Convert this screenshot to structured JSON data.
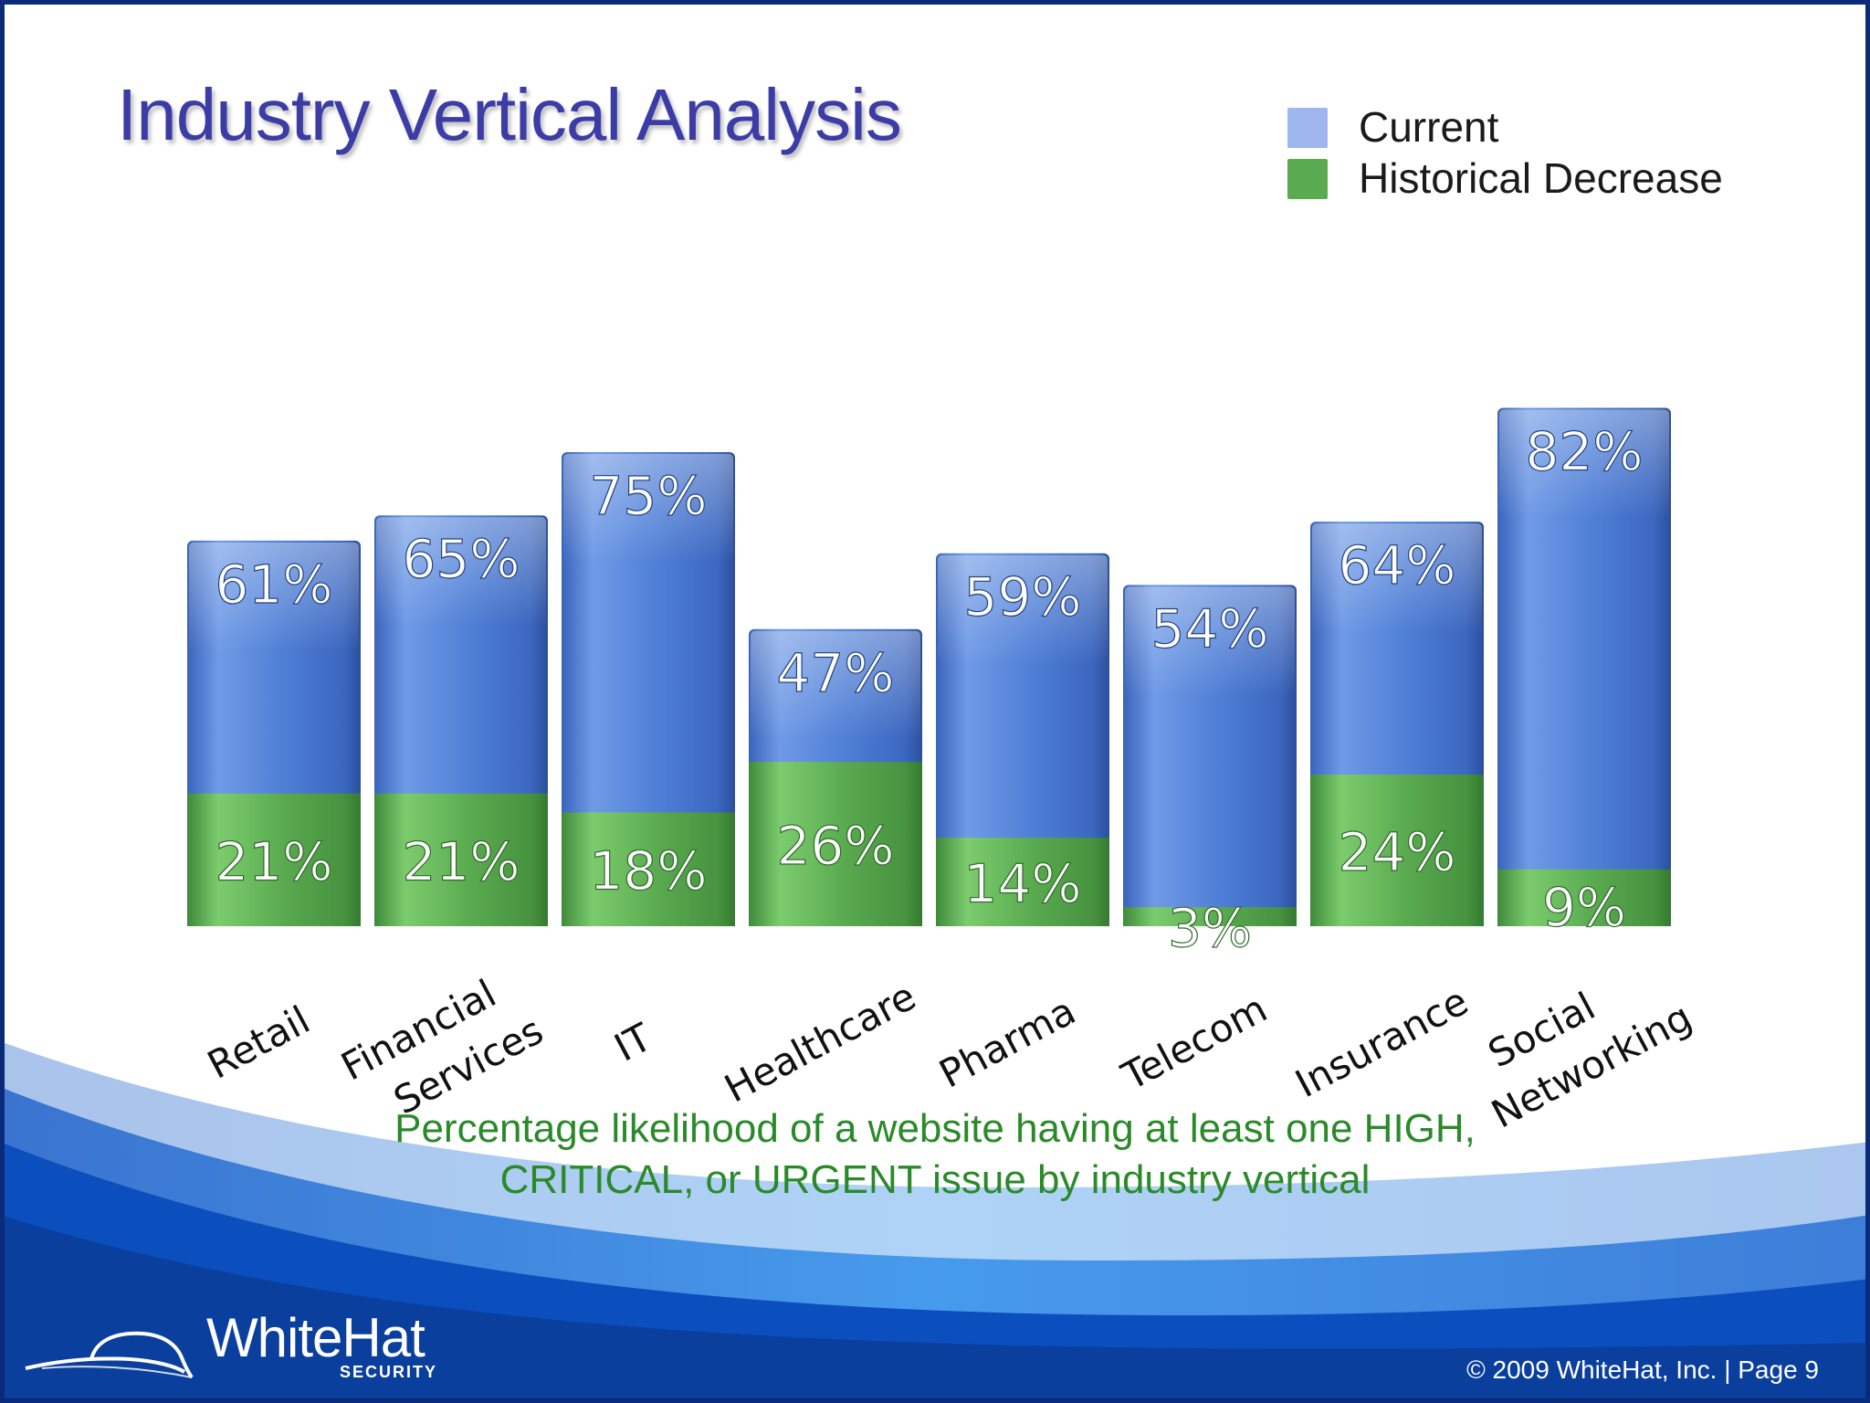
{
  "slide": {
    "title": "Industry Vertical Analysis",
    "caption_line1": "Percentage likelihood of a website having at least one HIGH,",
    "caption_line2": "CRITICAL, or URGENT issue by industry vertical",
    "footer": "© 2009 WhiteHat, Inc.  |  Page   9",
    "logo_text": "WhiteHat",
    "logo_subtext": "SECURITY"
  },
  "legend": [
    {
      "label": "Current",
      "color": "#9fb6ee"
    },
    {
      "label": "Historical Decrease",
      "color": "#5aaa50"
    }
  ],
  "chart_data": {
    "type": "bar",
    "stacked": true,
    "title": "",
    "xlabel": "",
    "ylabel": "",
    "ylim": [
      0,
      100
    ],
    "categories": [
      "Retail",
      "Financial Services",
      "IT",
      "Healthcare",
      "Pharma",
      "Telecom",
      "Insurance",
      "Social Networking"
    ],
    "category_lines": [
      [
        "Retail"
      ],
      [
        "Financial",
        "Services"
      ],
      [
        "IT"
      ],
      [
        "Healthcare"
      ],
      [
        "Pharma"
      ],
      [
        "Telecom"
      ],
      [
        "Insurance"
      ],
      [
        "Social",
        "Networking"
      ]
    ],
    "series": [
      {
        "name": "Historical Decrease",
        "values": [
          21,
          21,
          18,
          26,
          14,
          3,
          24,
          9
        ],
        "labels": [
          "21%",
          "21%",
          "18%",
          "26%",
          "14%",
          "3%",
          "24%",
          "9%"
        ],
        "color": "#5aaa50"
      },
      {
        "name": "Current",
        "values": [
          61,
          65,
          75,
          47,
          59,
          54,
          64,
          82
        ],
        "labels": [
          "61%",
          "65%",
          "75%",
          "47%",
          "59%",
          "54%",
          "64%",
          "82%"
        ],
        "color": "#4f7fd6"
      }
    ],
    "grid": false,
    "legend_position": "top-right"
  }
}
